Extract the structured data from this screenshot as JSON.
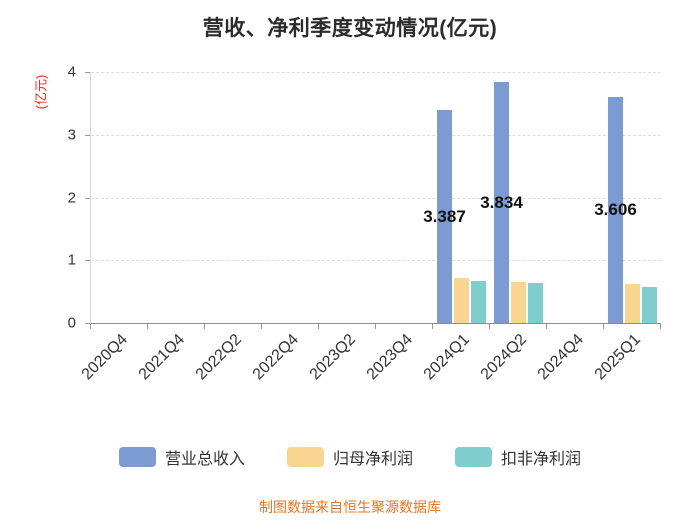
{
  "title": "营收、净利季度变动情况(亿元)",
  "y_axis_name": "(亿元)",
  "footer": "制图数据来自恒生聚源数据库",
  "colors": {
    "revenue_bar": "#7d9bd3",
    "net_profit_bar": "#fad592",
    "non_gaap_bar": "#7fcdcd",
    "axis_name_red": "#ff2222",
    "footer_orange": "#e87722"
  },
  "chart_data": {
    "type": "bar",
    "title": "营收、净利季度变动情况(亿元)",
    "categories": [
      "2020Q4",
      "2021Q4",
      "2022Q2",
      "2022Q4",
      "2023Q2",
      "2023Q4",
      "2024Q1",
      "2024Q2",
      "2024Q4",
      "2025Q1"
    ],
    "series": [
      {
        "id": "total-revenue",
        "name": "营业总收入",
        "color": "#7d9bd3",
        "values": [
          0,
          0,
          0,
          0,
          0,
          0,
          3.387,
          3.834,
          0,
          3.606
        ]
      },
      {
        "id": "net-profit",
        "name": "归母净利润",
        "color": "#fad592",
        "values": [
          0,
          0,
          0,
          0,
          0,
          0,
          0.72,
          0.66,
          0,
          0.62
        ]
      },
      {
        "id": "non-gaap-net-profit",
        "name": "扣非净利润",
        "color": "#7fcdcd",
        "values": [
          0,
          0,
          0,
          0,
          0,
          0,
          0.67,
          0.64,
          0,
          0.57
        ]
      }
    ],
    "bar_value_labels": [
      {
        "category": "2024Q1",
        "value": "3.387"
      },
      {
        "category": "2024Q2",
        "value": "3.834"
      },
      {
        "category": "2025Q1",
        "value": "3.606"
      }
    ],
    "ylabel": "(亿元)",
    "ylim": [
      0,
      4
    ],
    "yticks": [
      0,
      1,
      2,
      3,
      4
    ],
    "grid": true,
    "grid_style": "dashed",
    "legend_position": "bottom",
    "x_label_rotation": 45
  }
}
